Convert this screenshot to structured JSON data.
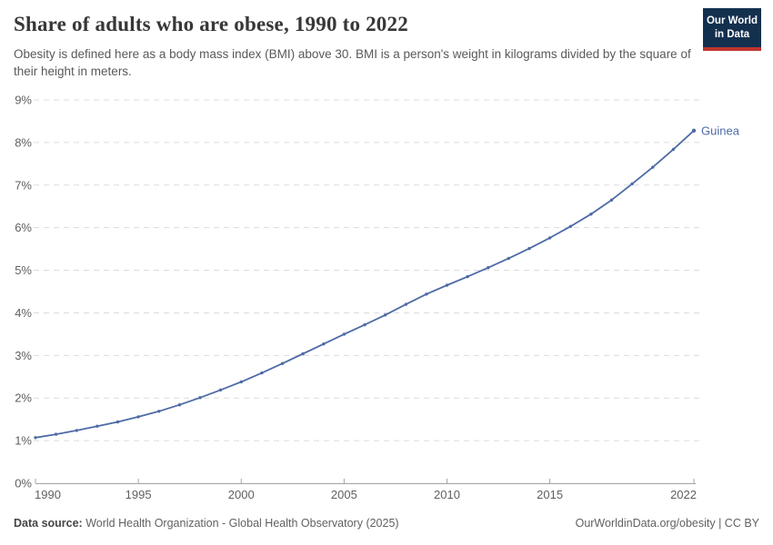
{
  "header": {
    "title": "Share of adults who are obese, 1990 to 2022",
    "subtitle": "Obesity is defined here as a body mass index (BMI) above 30. BMI is a person's weight in kilograms divided by the square of their height in meters.",
    "logo": {
      "line1": "Our World",
      "line2": "in Data",
      "bg_color": "#14304f",
      "accent_color": "#c0342e",
      "text_color": "#ffffff"
    }
  },
  "chart_data": {
    "type": "line",
    "title": "Share of adults who are obese, 1990 to 2022",
    "xlabel": "",
    "ylabel": "",
    "xlim": [
      1990,
      2022
    ],
    "ylim": [
      0,
      9
    ],
    "x_ticks": [
      1990,
      1995,
      2000,
      2005,
      2010,
      2015,
      2022
    ],
    "y_ticks": [
      0,
      1,
      2,
      3,
      4,
      5,
      6,
      7,
      8,
      9
    ],
    "y_tick_suffix": "%",
    "grid": "horizontal-dashed",
    "grid_color": "#dcdcdc",
    "axis_color": "#a3a3a3",
    "tick_color": "#606060",
    "legend_position": "end-of-line-label",
    "series": [
      {
        "name": "Guinea",
        "color": "#4e6ba5",
        "x": [
          1990,
          1991,
          1992,
          1993,
          1994,
          1995,
          1996,
          1997,
          1998,
          1999,
          2000,
          2001,
          2002,
          2003,
          2004,
          2005,
          2006,
          2007,
          2008,
          2009,
          2010,
          2011,
          2012,
          2013,
          2014,
          2015,
          2016,
          2017,
          2018,
          2019,
          2020,
          2021,
          2022
        ],
        "values": [
          1.07,
          1.15,
          1.24,
          1.34,
          1.44,
          1.56,
          1.69,
          1.84,
          2.01,
          2.19,
          2.38,
          2.59,
          2.81,
          3.04,
          3.27,
          3.5,
          3.72,
          3.95,
          4.2,
          4.44,
          4.65,
          4.85,
          5.06,
          5.28,
          5.51,
          5.76,
          6.03,
          6.32,
          6.65,
          7.03,
          7.42,
          7.84,
          8.28
        ]
      }
    ]
  },
  "footer": {
    "source_label": "Data source:",
    "source_text": " World Health Organization - Global Health Observatory (2025)",
    "rights": "OurWorldinData.org/obesity | CC BY"
  }
}
